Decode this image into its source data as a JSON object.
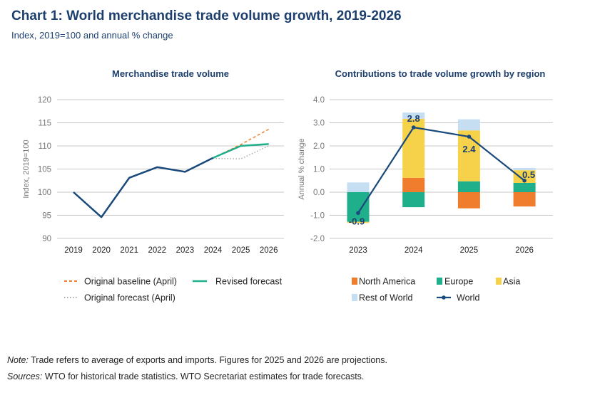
{
  "header": {
    "title": "Chart 1: World merchandise trade volume growth, 2019-2026",
    "subtitle": "Index, 2019=100 and annual % change"
  },
  "footer": {
    "note_label": "Note:",
    "note_text": " Trade refers to average of exports and imports. Figures for 2025 and 2026 are projections.",
    "sources_label": "Sources:",
    "sources_text": " WTO for historical trade statistics. WTO Secretariat estimates for trade forecasts."
  },
  "chart_data": [
    {
      "type": "line",
      "title": "Merchandise trade volume",
      "ylabel": "Index, 2019=100",
      "xlabel": "",
      "ylim": [
        90,
        120
      ],
      "yticks": [
        90,
        95,
        100,
        105,
        110,
        115,
        120
      ],
      "grid": true,
      "legend_position": "bottom",
      "x": [
        "2019",
        "2020",
        "2021",
        "2022",
        "2023",
        "2024",
        "2025",
        "2026"
      ],
      "series": [
        {
          "key": "history",
          "values": [
            100,
            94.6,
            103.1,
            105.4,
            104.4,
            107.4,
            null,
            null
          ],
          "color": "#1a4a7c",
          "style": "solid"
        },
        {
          "name": "Original baseline (April)",
          "values": [
            null,
            null,
            null,
            null,
            null,
            107.4,
            110.3,
            113.6
          ],
          "color": "#ef7d2d",
          "style": "dashed"
        },
        {
          "name": "Revised forecast",
          "values": [
            null,
            null,
            null,
            null,
            null,
            107.4,
            110.0,
            110.4
          ],
          "color": "#1faf8a",
          "style": "solid"
        },
        {
          "name": "Original forecast (April)",
          "values": [
            null,
            null,
            null,
            null,
            null,
            107.3,
            107.2,
            110.0
          ],
          "color": "#aaaaaa",
          "style": "dotted"
        }
      ]
    },
    {
      "type": "bar",
      "stacked": true,
      "title": "Contributions to trade volume growth by region",
      "ylabel": "Annual % change",
      "xlabel": "",
      "ylim": [
        -2.0,
        4.0
      ],
      "yticks": [
        "-2.0",
        "-1.0",
        "0.0",
        "1.0",
        "2.0",
        "3.0",
        "4.0"
      ],
      "grid": true,
      "legend_position": "bottom",
      "categories": [
        "2023",
        "2024",
        "2025",
        "2026"
      ],
      "series": [
        {
          "name": "North America",
          "values": [
            0.0,
            0.62,
            -0.7,
            -0.62
          ],
          "color": "#ef7d2d"
        },
        {
          "name": "Europe",
          "values": [
            -1.28,
            -0.65,
            0.47,
            0.4
          ],
          "color": "#1faf8a"
        },
        {
          "name": "Asia",
          "values": [
            -0.05,
            2.55,
            2.2,
            0.55
          ],
          "color": "#f6d24a"
        },
        {
          "name": "Rest of World",
          "values": [
            0.42,
            0.27,
            0.48,
            0.1
          ],
          "color": "#c6def2"
        }
      ],
      "line": {
        "name": "World",
        "values": [
          -0.9,
          2.8,
          2.4,
          0.5
        ],
        "labels": [
          "-0.9",
          "2.8",
          "2.4",
          "0.5"
        ],
        "color": "#1a4a7c"
      }
    }
  ]
}
